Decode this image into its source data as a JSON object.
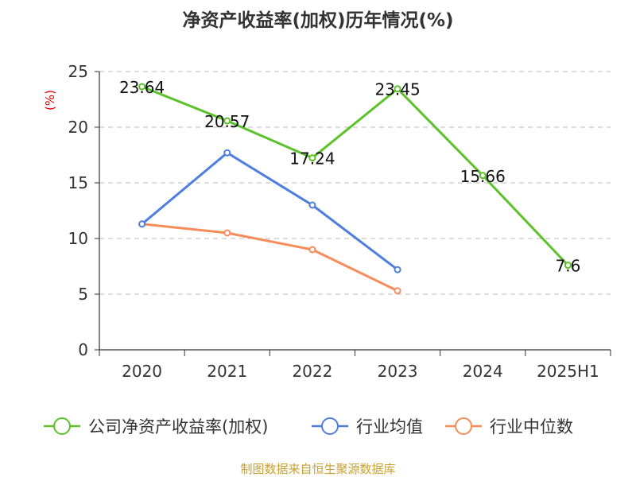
{
  "chart_data": {
    "type": "line",
    "title": "净资产收益率(加权)历年情况(%)",
    "ylabel": "(%)",
    "xlabel": "",
    "categories": [
      "2020",
      "2021",
      "2022",
      "2023",
      "2024",
      "2025H1"
    ],
    "ylim": [
      0,
      25
    ],
    "yticks": [
      0,
      5,
      10,
      15,
      20,
      25
    ],
    "grid": true,
    "legend_position": "bottom",
    "series": [
      {
        "name": "公司净资产收益率(加权)",
        "color": "#5cc22a",
        "values": [
          23.64,
          20.57,
          17.24,
          23.45,
          15.66,
          7.6
        ],
        "labels": [
          "23.64",
          "20.57",
          "17.24",
          "23.45",
          "15.66",
          "7.6"
        ]
      },
      {
        "name": "行业均值",
        "color": "#4f7fde",
        "values": [
          11.3,
          17.7,
          13.0,
          7.2,
          null,
          null
        ]
      },
      {
        "name": "行业中位数",
        "color": "#f78b59",
        "values": [
          11.3,
          10.5,
          9.0,
          5.3,
          null,
          null
        ]
      }
    ]
  },
  "source": "制图数据来自恒生聚源数据库"
}
